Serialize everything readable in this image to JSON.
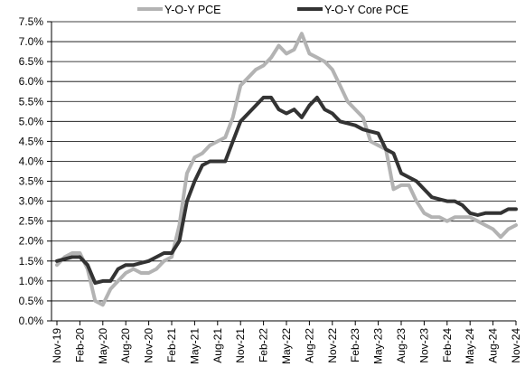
{
  "chart_data": {
    "type": "line",
    "title": "",
    "xlabel": "",
    "ylabel": "",
    "ylim": [
      0,
      7.5
    ],
    "yticks": [
      "0.0%",
      "0.5%",
      "1.0%",
      "1.5%",
      "2.0%",
      "2.5%",
      "3.0%",
      "3.5%",
      "4.0%",
      "4.5%",
      "5.0%",
      "5.5%",
      "6.0%",
      "6.5%",
      "7.0%",
      "7.5%"
    ],
    "xticks": [
      "Nov-19",
      "Feb-20",
      "May-20",
      "Aug-20",
      "Nov-20",
      "Feb-21",
      "May-21",
      "Aug-21",
      "Nov-21",
      "Feb-22",
      "May-22",
      "Aug-22",
      "Nov-22",
      "Feb-23",
      "May-23",
      "Aug-23",
      "Nov-23",
      "Feb-24",
      "May-24",
      "Aug-24",
      "Nov-24"
    ],
    "grid": "horizontal",
    "legend_position": "top",
    "x": [
      "Nov-19",
      "Dec-19",
      "Jan-20",
      "Feb-20",
      "Mar-20",
      "Apr-20",
      "May-20",
      "Jun-20",
      "Jul-20",
      "Aug-20",
      "Sep-20",
      "Oct-20",
      "Nov-20",
      "Dec-20",
      "Jan-21",
      "Feb-21",
      "Mar-21",
      "Apr-21",
      "May-21",
      "Jun-21",
      "Jul-21",
      "Aug-21",
      "Sep-21",
      "Oct-21",
      "Nov-21",
      "Dec-21",
      "Jan-22",
      "Feb-22",
      "Mar-22",
      "Apr-22",
      "May-22",
      "Jun-22",
      "Jul-22",
      "Aug-22",
      "Sep-22",
      "Oct-22",
      "Nov-22",
      "Dec-22",
      "Jan-23",
      "Feb-23",
      "Mar-23",
      "Apr-23",
      "May-23",
      "Jun-23",
      "Jul-23",
      "Aug-23",
      "Sep-23",
      "Oct-23",
      "Nov-23",
      "Dec-23",
      "Jan-24",
      "Feb-24",
      "Mar-24",
      "Apr-24",
      "May-24",
      "Jun-24",
      "Jul-24",
      "Aug-24",
      "Sep-24",
      "Oct-24",
      "Nov-24"
    ],
    "series": [
      {
        "name": "Y-O-Y PCE",
        "color": "#b3b3b3",
        "values": [
          1.4,
          1.6,
          1.7,
          1.7,
          1.3,
          0.5,
          0.4,
          0.8,
          1.0,
          1.2,
          1.3,
          1.2,
          1.2,
          1.3,
          1.5,
          1.6,
          2.4,
          3.7,
          4.1,
          4.2,
          4.4,
          4.5,
          4.6,
          5.1,
          5.9,
          6.1,
          6.3,
          6.4,
          6.6,
          6.9,
          6.7,
          6.8,
          7.2,
          6.7,
          6.6,
          6.5,
          6.3,
          5.9,
          5.5,
          5.3,
          5.1,
          4.5,
          4.4,
          4.3,
          3.3,
          3.4,
          3.4,
          3.0,
          2.7,
          2.6,
          2.6,
          2.5,
          2.6,
          2.6,
          2.6,
          2.5,
          2.4,
          2.3,
          2.1,
          2.3,
          2.4
        ]
      },
      {
        "name": "Y-O-Y Core PCE",
        "color": "#333333",
        "values": [
          1.5,
          1.55,
          1.6,
          1.6,
          1.4,
          0.95,
          1.0,
          1.0,
          1.3,
          1.4,
          1.4,
          1.45,
          1.5,
          1.6,
          1.7,
          1.7,
          2.0,
          3.0,
          3.5,
          3.9,
          4.0,
          4.0,
          4.0,
          4.5,
          5.0,
          5.2,
          5.4,
          5.6,
          5.6,
          5.3,
          5.2,
          5.3,
          5.1,
          5.4,
          5.6,
          5.3,
          5.2,
          5.0,
          4.95,
          4.9,
          4.8,
          4.75,
          4.7,
          4.3,
          4.2,
          3.7,
          3.6,
          3.5,
          3.3,
          3.1,
          3.05,
          3.0,
          3.0,
          2.9,
          2.7,
          2.65,
          2.7,
          2.7,
          2.7,
          2.8,
          2.8
        ]
      }
    ]
  }
}
